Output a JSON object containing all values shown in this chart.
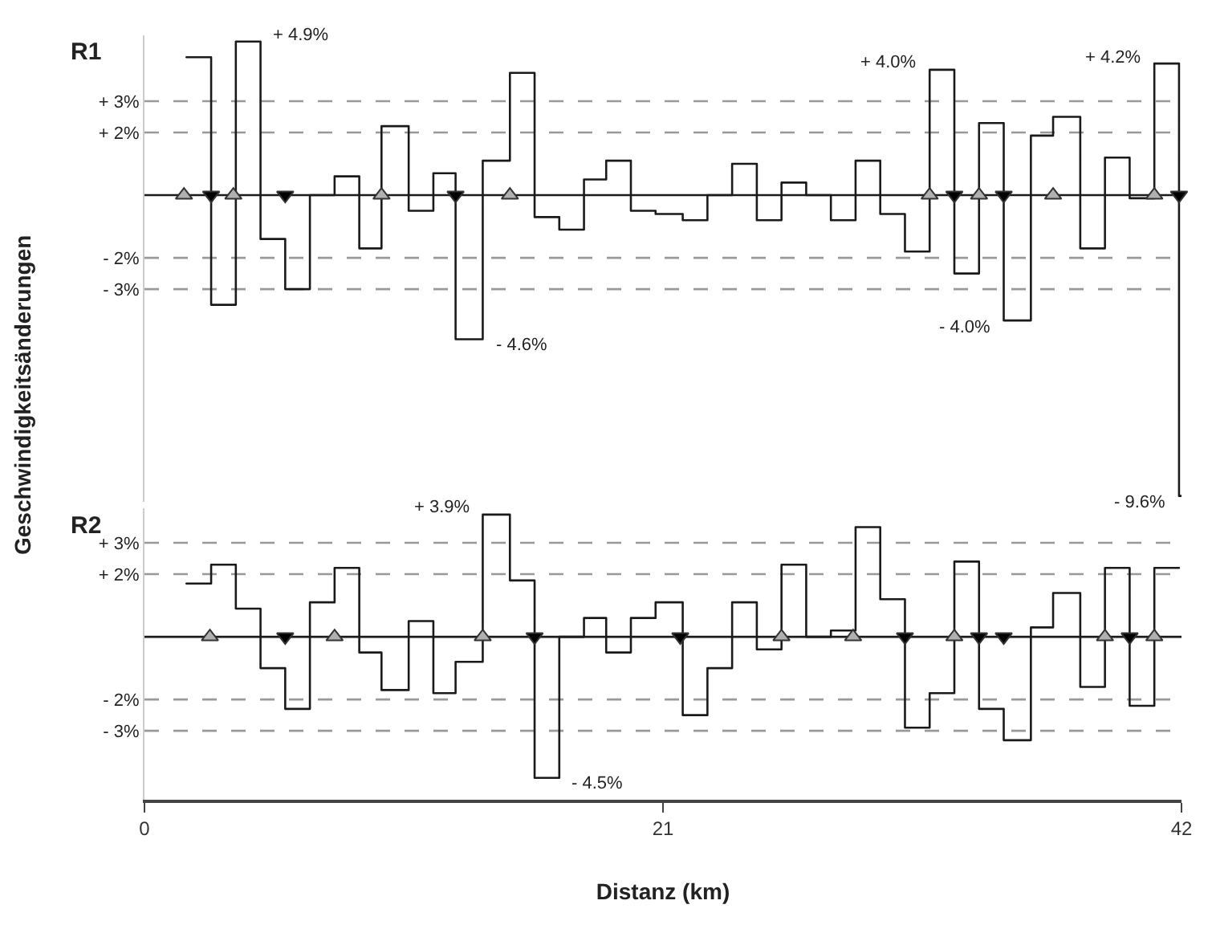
{
  "chart_data": [
    {
      "type": "step",
      "title": "R1",
      "ylabel": "Geschwindigkeitsänderungen",
      "xlim": [
        0,
        42
      ],
      "ylim": [
        -9.8,
        5.1
      ],
      "yticks": [
        {
          "value": 3,
          "label": "+ 3%"
        },
        {
          "value": 2,
          "label": "+ 2%"
        },
        {
          "value": -2,
          "label": "- 2%"
        },
        {
          "value": -3,
          "label": "- 3%"
        }
      ],
      "tick_labels": "y",
      "grid": false,
      "series": [
        {
          "color": "#1a1a1a",
          "x": [
            1.7,
            2.7,
            3.7,
            4.7,
            5.7,
            6.7,
            7.7,
            8.7,
            9.6,
            10.7,
            11.7,
            12.6,
            13.7,
            14.8,
            15.8,
            16.8,
            17.8,
            18.7,
            19.7,
            20.7,
            21.8,
            22.8,
            23.8,
            24.8,
            25.8,
            26.8,
            27.8,
            28.8,
            29.8,
            30.8,
            31.8,
            32.8,
            33.8,
            34.8,
            35.9,
            36.8,
            37.9,
            38.9,
            39.9,
            40.9,
            41.9,
            42.0
          ],
          "values": [
            4.4,
            -3.5,
            4.9,
            -1.4,
            -3.0,
            0,
            0.6,
            -1.7,
            2.2,
            -0.5,
            0.7,
            -4.6,
            1.1,
            3.9,
            -0.7,
            -1.1,
            0.5,
            1.1,
            -0.5,
            -0.6,
            -0.8,
            0,
            1.0,
            -0.8,
            0.4,
            0,
            -0.8,
            1.1,
            -0.6,
            -1.8,
            4.0,
            -2.5,
            2.3,
            -4.0,
            1.9,
            2.5,
            -1.7,
            1.2,
            -0.1,
            4.2,
            -9.6,
            -9.6
          ]
        },
        {
          "type": "scatter",
          "marker": "triangle",
          "color": "#b0b0b0",
          "x": [
            1.6,
            3.6,
            9.6,
            14.8,
            31.8,
            33.8,
            36.8,
            40.9
          ],
          "values": [
            0,
            0,
            0,
            0,
            0,
            0,
            0,
            0
          ]
        },
        {
          "type": "scatter",
          "marker": "triangle-down",
          "color": "#000000",
          "x": [
            2.7,
            5.7,
            12.6,
            32.8,
            34.8,
            41.9
          ],
          "values": [
            0,
            0,
            0,
            0,
            0,
            0
          ]
        }
      ],
      "ref_lines": [
        {
          "axis": "y",
          "value": 3,
          "line_style": "dashed",
          "color": "#999999"
        },
        {
          "axis": "y",
          "value": 2,
          "line_style": "dashed",
          "color": "#999999"
        },
        {
          "axis": "y",
          "value": -2,
          "line_style": "dashed",
          "color": "#999999"
        },
        {
          "axis": "y",
          "value": -3,
          "line_style": "dashed",
          "color": "#999999"
        },
        {
          "axis": "y",
          "value": 0,
          "line_style": "solid",
          "color": "#1a1a1a"
        }
      ],
      "annotations": [
        {
          "text": "+ 4.9%",
          "x": 4.7,
          "y": 4.9
        },
        {
          "text": "- 4.6%",
          "x": 13.7,
          "y": -4.6
        },
        {
          "text": "+ 4.0%",
          "x": 31.8,
          "y": 4.0
        },
        {
          "text": "- 4.0%",
          "x": 34.8,
          "y": -4.0
        },
        {
          "text": "+ 4.2%",
          "x": 40.9,
          "y": 4.2
        },
        {
          "text": "- 9.6%",
          "x": 41.9,
          "y": -9.6
        }
      ]
    },
    {
      "type": "step",
      "title": "R2",
      "xlabel": "Distanz (km)",
      "xlim": [
        0,
        42
      ],
      "xticks": [
        0,
        21,
        42
      ],
      "ylim": [
        -5.2,
        4.1
      ],
      "yticks": [
        {
          "value": 3,
          "label": "+ 3%"
        },
        {
          "value": 2,
          "label": "+ 2%"
        },
        {
          "value": -2,
          "label": "- 2%"
        },
        {
          "value": -3,
          "label": "- 3%"
        }
      ],
      "grid": false,
      "series": [
        {
          "color": "#1a1a1a",
          "x": [
            1.7,
            2.7,
            3.7,
            4.7,
            5.7,
            6.7,
            7.7,
            8.7,
            9.6,
            10.7,
            11.7,
            12.6,
            13.7,
            14.8,
            15.8,
            16.8,
            17.8,
            18.7,
            19.7,
            20.7,
            21.8,
            22.8,
            23.8,
            24.8,
            25.8,
            26.8,
            27.8,
            28.8,
            29.8,
            30.8,
            31.8,
            32.8,
            33.8,
            34.8,
            35.9,
            36.8,
            37.9,
            38.9,
            39.9,
            40.9,
            41.9
          ],
          "values": [
            1.7,
            2.3,
            0.9,
            -1.0,
            -2.3,
            1.1,
            2.2,
            -0.5,
            -1.7,
            0.5,
            -1.8,
            -0.8,
            3.9,
            1.8,
            -4.5,
            0,
            0.6,
            -0.5,
            0.6,
            1.1,
            -2.5,
            -1.0,
            1.1,
            -0.4,
            2.3,
            0,
            0.2,
            3.5,
            1.2,
            -2.9,
            -1.8,
            2.4,
            -2.3,
            -3.3,
            0.3,
            1.4,
            -1.6,
            2.2,
            -2.2,
            2.2,
            2.2
          ]
        },
        {
          "type": "scatter",
          "marker": "triangle",
          "color": "#b0b0b0",
          "x": [
            2.65,
            7.7,
            13.7,
            25.8,
            28.7,
            32.8,
            38.9,
            40.9
          ],
          "values": [
            0,
            0,
            0,
            0,
            0,
            0,
            0,
            0
          ]
        },
        {
          "type": "scatter",
          "marker": "triangle-down",
          "color": "#000000",
          "x": [
            5.7,
            15.8,
            21.7,
            30.8,
            33.8,
            34.8,
            39.9
          ],
          "values": [
            0,
            0,
            0,
            0,
            0,
            0,
            0
          ]
        }
      ],
      "ref_lines": [
        {
          "axis": "y",
          "value": 3,
          "line_style": "dashed",
          "color": "#999999"
        },
        {
          "axis": "y",
          "value": 2,
          "line_style": "dashed",
          "color": "#999999"
        },
        {
          "axis": "y",
          "value": -2,
          "line_style": "dashed",
          "color": "#999999"
        },
        {
          "axis": "y",
          "value": -3,
          "line_style": "dashed",
          "color": "#999999"
        },
        {
          "axis": "y",
          "value": 0,
          "line_style": "solid",
          "color": "#1a1a1a"
        }
      ],
      "annotations": [
        {
          "text": "+ 3.9%",
          "x": 13.7,
          "y": 3.9
        },
        {
          "text": "- 4.5%",
          "x": 16.8,
          "y": -4.5
        }
      ]
    }
  ]
}
